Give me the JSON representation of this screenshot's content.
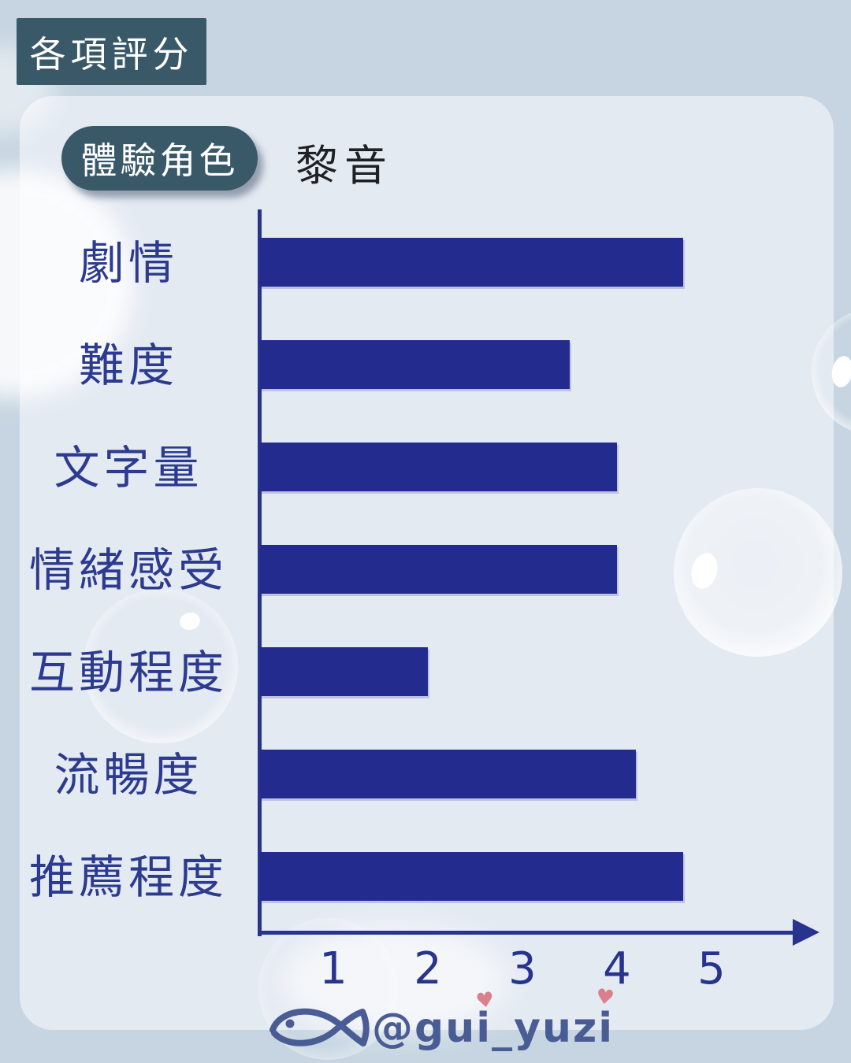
{
  "header": {
    "badge_label": "各項評分"
  },
  "legend": {
    "pill_label": "體驗角色",
    "role_name": "黎音"
  },
  "chart_data": {
    "type": "bar",
    "orientation": "horizontal",
    "title": "各項評分",
    "series_label": "黎音",
    "categories": [
      "劇情",
      "難度",
      "文字量",
      "情緒感受",
      "互動程度",
      "流暢度",
      "推薦程度"
    ],
    "values": [
      4.7,
      3.5,
      4,
      4,
      2,
      4.2,
      4.7
    ],
    "x_ticks": [
      "1",
      "2",
      "3",
      "4",
      "5"
    ],
    "xlim": [
      0,
      5
    ],
    "grid": false,
    "bar_color": "#232b8e",
    "category_color": "#2c3a8f",
    "axis_color": "#27338c",
    "tick_color": "#27338c"
  },
  "footer": {
    "handle": "@gui_yuzi",
    "fish_icon": "fish-doodle",
    "heart_icon": "heart"
  },
  "colors": {
    "outer_bg": "#c6d5e1",
    "card_bg": "#e4eaf2",
    "badge_bg": "#3a5968",
    "badge_text": "#ffffff",
    "role_name_color": "#1f2023",
    "watermark_color": "#4a5c94",
    "heart_color": "#d9808c"
  }
}
